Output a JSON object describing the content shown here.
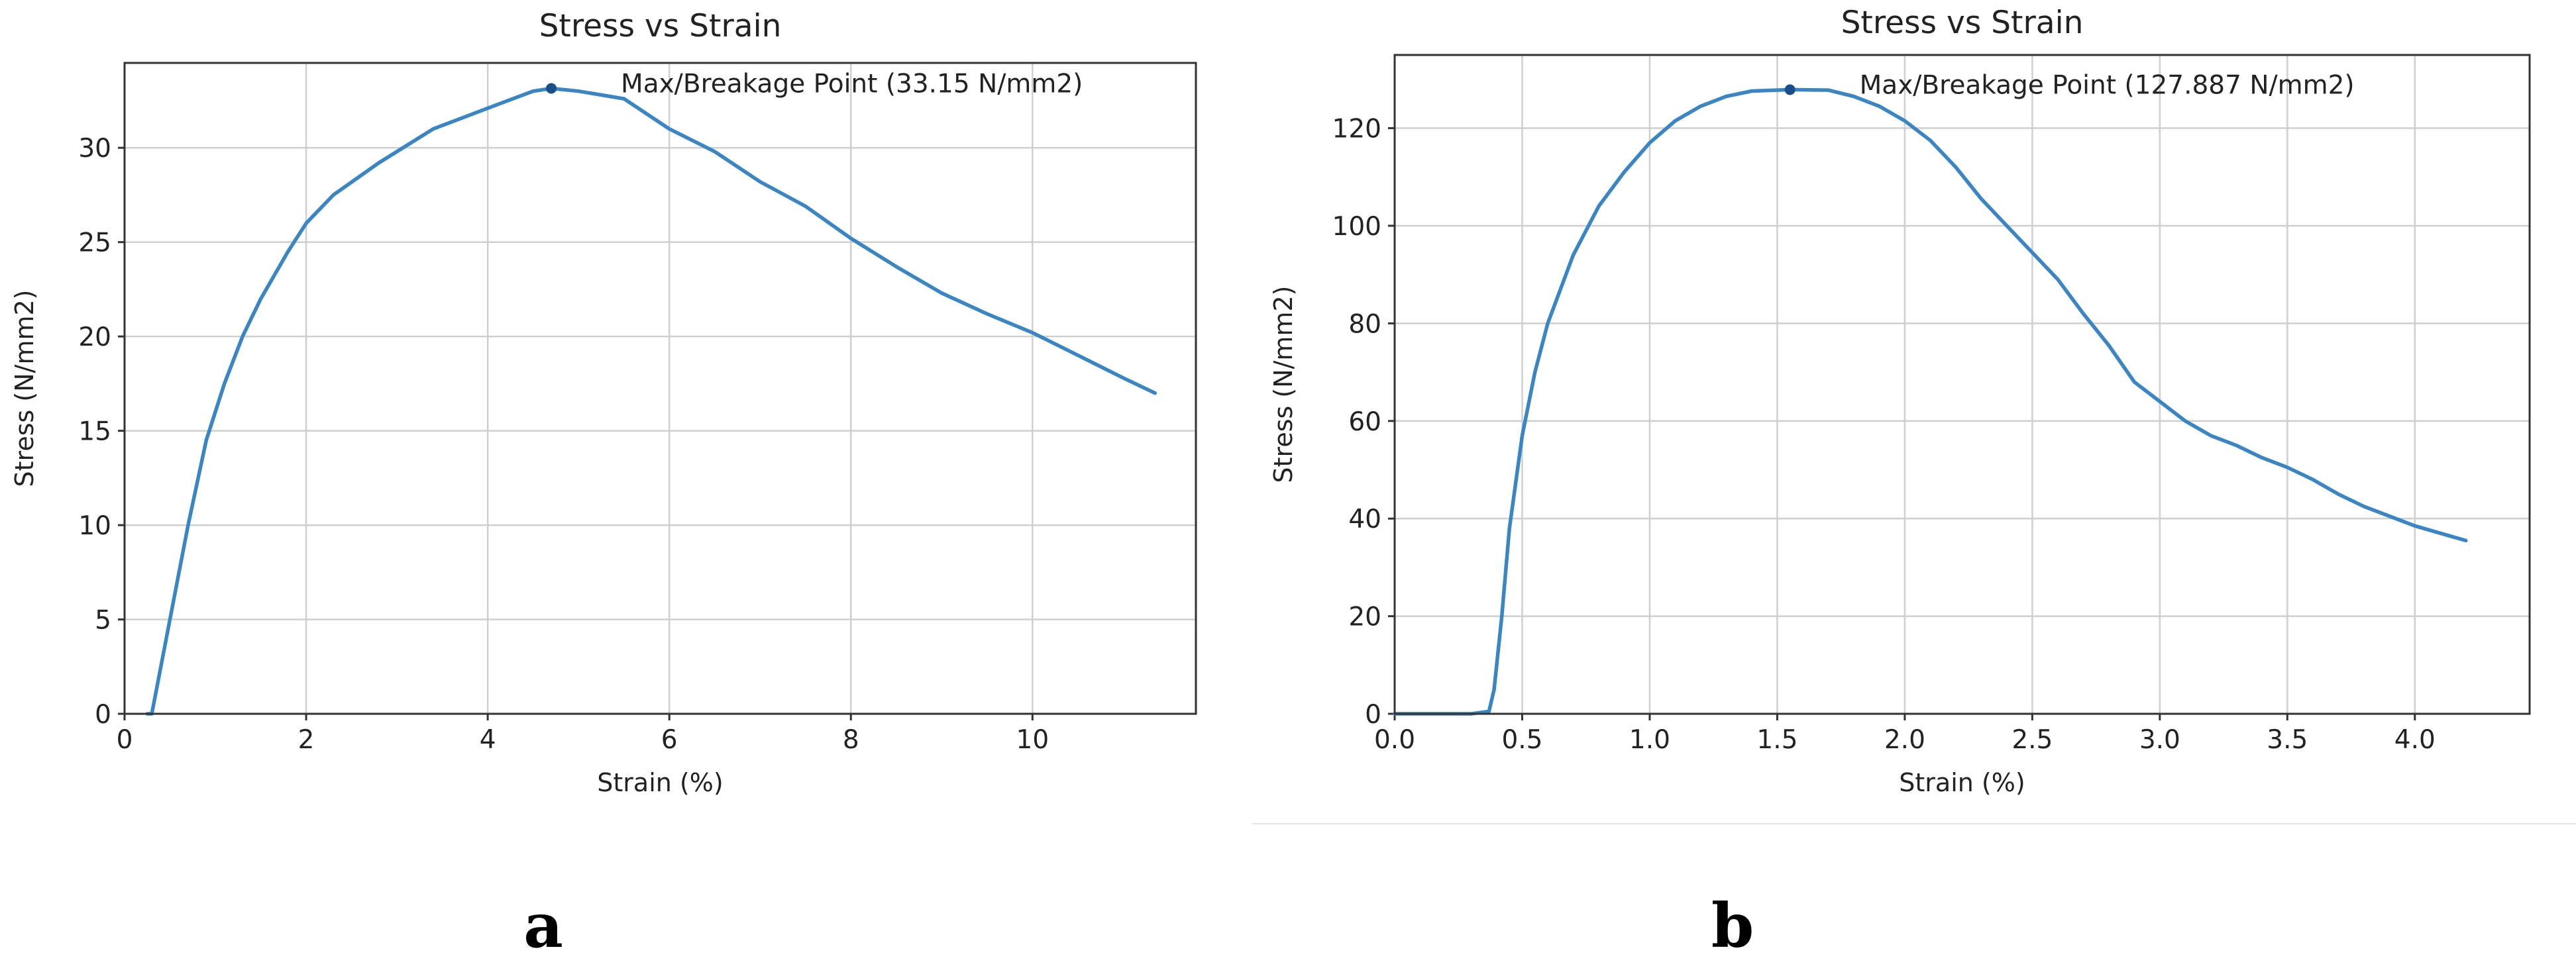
{
  "colors": {
    "series": "#3a85c4",
    "max_point": "#1b4f8a"
  },
  "panel_labels": [
    "a",
    "b"
  ],
  "chart_data": [
    {
      "type": "line",
      "title": "Stress vs Strain",
      "xlabel": "Strain (%)",
      "ylabel": "Stress (N/mm2)",
      "xlim": [
        0,
        11.8
      ],
      "ylim": [
        0,
        34.5
      ],
      "xticks": [
        0,
        2,
        4,
        6,
        8,
        10
      ],
      "yticks": [
        0,
        5,
        10,
        15,
        20,
        25,
        30
      ],
      "grid": true,
      "annotation": {
        "text": "Max/Breakage Point (33.15 N/mm2)",
        "x": 4.7,
        "y": 33.15
      },
      "series": [
        {
          "name": "Stress",
          "x": [
            0.25,
            0.3,
            0.5,
            0.7,
            0.9,
            1.1,
            1.3,
            1.5,
            1.8,
            2.0,
            2.3,
            2.8,
            3.4,
            4.0,
            4.5,
            4.7,
            5.0,
            5.5,
            6.0,
            6.5,
            7.0,
            7.5,
            8.0,
            8.5,
            9.0,
            9.5,
            10.0,
            10.5,
            11.0,
            11.35
          ],
          "y": [
            0,
            0,
            5,
            10,
            14.5,
            17.5,
            20,
            22,
            24.5,
            26,
            27.5,
            29.2,
            31.0,
            32.1,
            33.0,
            33.15,
            33.0,
            32.6,
            31.0,
            29.8,
            28.2,
            26.9,
            25.2,
            23.7,
            22.3,
            21.2,
            20.2,
            19.0,
            17.8,
            17.0
          ]
        }
      ]
    },
    {
      "type": "line",
      "title": "Stress vs Strain",
      "xlabel": "Strain (%)",
      "ylabel": "Stress (N/mm2)",
      "xlim": [
        0,
        4.45
      ],
      "ylim": [
        0,
        135
      ],
      "xticks": [
        0.0,
        0.5,
        1.0,
        1.5,
        2.0,
        2.5,
        3.0,
        3.5,
        4.0
      ],
      "xtick_labels": [
        "0.0",
        "0.5",
        "1.0",
        "1.5",
        "2.0",
        "2.5",
        "3.0",
        "3.5",
        "4.0"
      ],
      "yticks": [
        0,
        20,
        40,
        60,
        80,
        100,
        120
      ],
      "grid": true,
      "annotation": {
        "text": "Max/Breakage Point (127.887 N/mm2)",
        "x": 1.55,
        "y": 127.887
      },
      "series": [
        {
          "name": "Stress",
          "x": [
            0.0,
            0.3,
            0.37,
            0.39,
            0.42,
            0.45,
            0.5,
            0.55,
            0.6,
            0.7,
            0.8,
            0.9,
            1.0,
            1.1,
            1.2,
            1.3,
            1.4,
            1.5,
            1.55,
            1.7,
            1.8,
            1.9,
            2.0,
            2.1,
            2.2,
            2.3,
            2.4,
            2.5,
            2.6,
            2.7,
            2.8,
            2.9,
            3.0,
            3.1,
            3.2,
            3.3,
            3.4,
            3.5,
            3.6,
            3.7,
            3.8,
            3.9,
            4.0,
            4.1,
            4.2
          ],
          "y": [
            0,
            0,
            0.5,
            5,
            20,
            38,
            57,
            70,
            80,
            94,
            104,
            111,
            117,
            121.5,
            124.5,
            126.5,
            127.6,
            127.8,
            127.887,
            127.8,
            126.5,
            124.5,
            121.5,
            117.5,
            112,
            105.5,
            100,
            94.5,
            89,
            82,
            75.5,
            68,
            64,
            60,
            57,
            55,
            52.5,
            50.5,
            48,
            45,
            42.5,
            40.5,
            38.5,
            37,
            35.5
          ]
        }
      ]
    }
  ]
}
